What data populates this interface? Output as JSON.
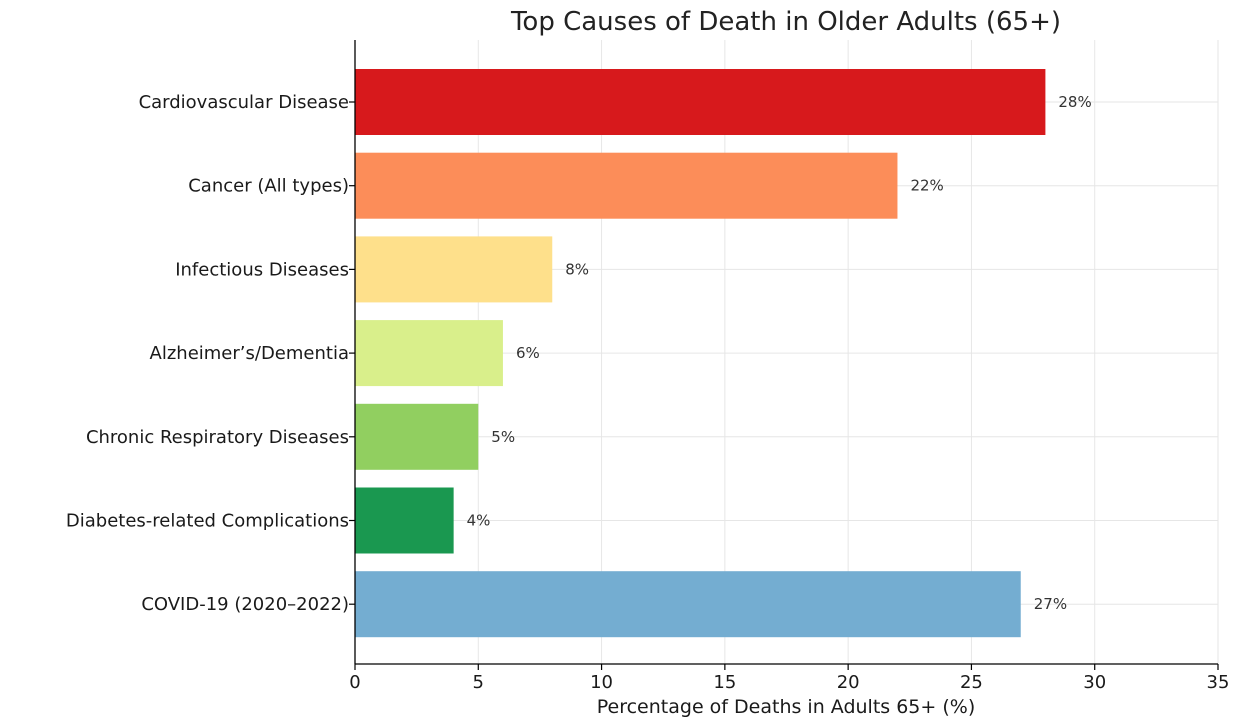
{
  "chart_data": {
    "type": "bar",
    "orientation": "horizontal",
    "title": "Top Causes of Death in Older Adults (65+)",
    "xlabel": "Percentage of Deaths in Adults 65+ (%)",
    "ylabel": "",
    "categories": [
      "Cardiovascular Disease",
      "Cancer (All types)",
      "Infectious Diseases",
      "Alzheimer’s/Dementia",
      "Chronic Respiratory Diseases",
      "Diabetes-related Complications",
      "COVID-19 (2020–2022)"
    ],
    "values": [
      28,
      22,
      8,
      6,
      5,
      4,
      27
    ],
    "value_labels": [
      "28%",
      "22%",
      "8%",
      "6%",
      "5%",
      "4%",
      "27%"
    ],
    "colors": [
      "#d7191c",
      "#fc8d59",
      "#fee08b",
      "#d9ef8b",
      "#91cf60",
      "#1a9850",
      "#74add1"
    ],
    "xlim": [
      0,
      35
    ],
    "xticks": [
      0,
      5,
      10,
      15,
      20,
      25,
      30,
      35
    ],
    "grid": true,
    "legend": "none"
  }
}
